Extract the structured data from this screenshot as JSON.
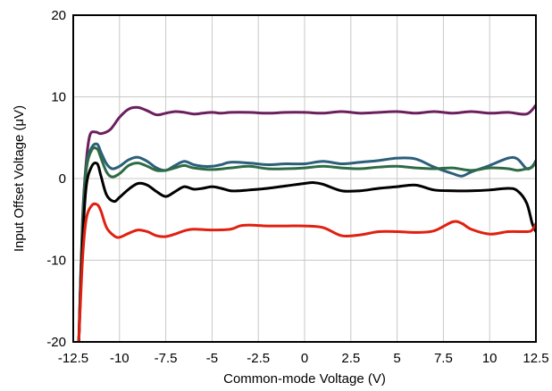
{
  "chart_data": {
    "type": "line",
    "title": "",
    "xlabel": "Common-mode Voltage (V)",
    "ylabel": "Input Offset Voltage (μV)",
    "xlim": [
      -12.5,
      12.5
    ],
    "ylim": [
      -20,
      20
    ],
    "x_ticks": [
      -12.5,
      -10,
      -7.5,
      -5,
      -2.5,
      0,
      2.5,
      5,
      7.5,
      10,
      12.5
    ],
    "x_tick_labels": [
      "-12.5",
      "-10",
      "-7.5",
      "-5",
      "-2.5",
      "0",
      "2.5",
      "5",
      "7.5",
      "10",
      "12.5"
    ],
    "y_ticks": [
      -20,
      -10,
      0,
      10,
      20
    ],
    "y_tick_labels": [
      "-20",
      "-10",
      "0",
      "10",
      "20"
    ],
    "x_grid": true,
    "y_grid": true,
    "legend": "none",
    "series": [
      {
        "color": "#6b1f5e",
        "points": [
          [
            -12.2,
            -20
          ],
          [
            -12.0,
            -5
          ],
          [
            -11.8,
            2
          ],
          [
            -11.6,
            5.3
          ],
          [
            -11.3,
            5.7
          ],
          [
            -11.0,
            5.5
          ],
          [
            -10.5,
            6
          ],
          [
            -10.0,
            7.5
          ],
          [
            -9.5,
            8.5
          ],
          [
            -9.0,
            8.7
          ],
          [
            -8.5,
            8.3
          ],
          [
            -8.0,
            7.8
          ],
          [
            -7.5,
            8.0
          ],
          [
            -7.0,
            8.2
          ],
          [
            -6.5,
            8.1
          ],
          [
            -6.0,
            7.9
          ],
          [
            -5.5,
            8.0
          ],
          [
            -5.0,
            8.1
          ],
          [
            -4.5,
            8.0
          ],
          [
            -4.0,
            8.1
          ],
          [
            -3.0,
            8.1
          ],
          [
            -2.0,
            8.0
          ],
          [
            -1.0,
            8.1
          ],
          [
            0.0,
            8.1
          ],
          [
            1.0,
            8.0
          ],
          [
            2.0,
            8.2
          ],
          [
            3.0,
            8.0
          ],
          [
            4.0,
            8.1
          ],
          [
            5.0,
            8.2
          ],
          [
            6.0,
            8.0
          ],
          [
            7.0,
            8.2
          ],
          [
            8.0,
            8.0
          ],
          [
            9.0,
            8.2
          ],
          [
            10.0,
            8.0
          ],
          [
            11.0,
            8.1
          ],
          [
            12.0,
            7.9
          ],
          [
            12.5,
            9.0
          ]
        ]
      },
      {
        "color": "#2b5f7a",
        "points": [
          [
            -12.2,
            -20
          ],
          [
            -12.0,
            -6
          ],
          [
            -11.8,
            1.5
          ],
          [
            -11.5,
            3.8
          ],
          [
            -11.2,
            4.2
          ],
          [
            -11.0,
            3.2
          ],
          [
            -10.7,
            1.8
          ],
          [
            -10.4,
            1.2
          ],
          [
            -10.0,
            1.5
          ],
          [
            -9.5,
            2.3
          ],
          [
            -9.0,
            2.6
          ],
          [
            -8.5,
            2.1
          ],
          [
            -8.0,
            1.3
          ],
          [
            -7.5,
            1.0
          ],
          [
            -7.0,
            1.6
          ],
          [
            -6.5,
            2.1
          ],
          [
            -6.0,
            1.7
          ],
          [
            -5.5,
            1.5
          ],
          [
            -5.0,
            1.5
          ],
          [
            -4.5,
            1.7
          ],
          [
            -4.0,
            2.0
          ],
          [
            -3.0,
            1.9
          ],
          [
            -2.0,
            1.7
          ],
          [
            -1.0,
            1.8
          ],
          [
            0.0,
            1.8
          ],
          [
            1.0,
            2.1
          ],
          [
            2.0,
            1.8
          ],
          [
            3.0,
            2.0
          ],
          [
            4.0,
            2.2
          ],
          [
            5.0,
            2.5
          ],
          [
            6.0,
            2.4
          ],
          [
            7.0,
            1.4
          ],
          [
            8.0,
            0.6
          ],
          [
            8.5,
            0.3
          ],
          [
            9.0,
            0.8
          ],
          [
            10.0,
            1.6
          ],
          [
            11.0,
            2.5
          ],
          [
            11.5,
            2.4
          ],
          [
            12.0,
            1.2
          ],
          [
            12.3,
            1.5
          ],
          [
            12.5,
            2.2
          ]
        ]
      },
      {
        "color": "#2e6b45",
        "points": [
          [
            -12.2,
            -20
          ],
          [
            -12.0,
            -6
          ],
          [
            -11.8,
            1.0
          ],
          [
            -11.5,
            3.5
          ],
          [
            -11.2,
            3.6
          ],
          [
            -11.0,
            2.5
          ],
          [
            -10.7,
            0.8
          ],
          [
            -10.4,
            0.2
          ],
          [
            -10.0,
            0.6
          ],
          [
            -9.5,
            1.6
          ],
          [
            -9.0,
            1.9
          ],
          [
            -8.5,
            1.5
          ],
          [
            -8.0,
            1.0
          ],
          [
            -7.5,
            1.0
          ],
          [
            -7.0,
            1.3
          ],
          [
            -6.5,
            1.6
          ],
          [
            -6.0,
            1.3
          ],
          [
            -5.0,
            1.1
          ],
          [
            -4.0,
            1.3
          ],
          [
            -3.0,
            1.5
          ],
          [
            -2.0,
            1.2
          ],
          [
            -1.0,
            1.2
          ],
          [
            0.0,
            1.3
          ],
          [
            1.0,
            1.5
          ],
          [
            2.0,
            1.3
          ],
          [
            3.0,
            1.2
          ],
          [
            4.0,
            1.4
          ],
          [
            5.0,
            1.5
          ],
          [
            6.0,
            1.3
          ],
          [
            7.0,
            1.2
          ],
          [
            8.0,
            1.3
          ],
          [
            9.0,
            1.0
          ],
          [
            10.0,
            1.3
          ],
          [
            11.0,
            1.2
          ],
          [
            11.5,
            1.0
          ],
          [
            12.0,
            1.2
          ],
          [
            12.3,
            1.4
          ],
          [
            12.5,
            2.1
          ]
        ]
      },
      {
        "color": "#000000",
        "points": [
          [
            -12.2,
            -20
          ],
          [
            -12.0,
            -8
          ],
          [
            -11.8,
            -1.0
          ],
          [
            -11.5,
            1.5
          ],
          [
            -11.2,
            1.8
          ],
          [
            -11.0,
            0.3
          ],
          [
            -10.7,
            -2.0
          ],
          [
            -10.3,
            -2.8
          ],
          [
            -10.0,
            -2.3
          ],
          [
            -9.5,
            -1.3
          ],
          [
            -9.0,
            -0.6
          ],
          [
            -8.5,
            -0.8
          ],
          [
            -8.0,
            -1.6
          ],
          [
            -7.5,
            -2.2
          ],
          [
            -7.0,
            -1.6
          ],
          [
            -6.5,
            -1.0
          ],
          [
            -6.0,
            -1.3
          ],
          [
            -5.5,
            -1.2
          ],
          [
            -5.0,
            -1.0
          ],
          [
            -4.5,
            -1.2
          ],
          [
            -4.0,
            -1.5
          ],
          [
            -3.5,
            -1.5
          ],
          [
            -3.0,
            -1.4
          ],
          [
            -2.0,
            -1.2
          ],
          [
            -1.0,
            -0.9
          ],
          [
            0.0,
            -0.6
          ],
          [
            0.5,
            -0.5
          ],
          [
            1.0,
            -0.7
          ],
          [
            2.0,
            -1.5
          ],
          [
            3.0,
            -1.5
          ],
          [
            4.0,
            -1.2
          ],
          [
            5.0,
            -1.0
          ],
          [
            6.0,
            -0.8
          ],
          [
            7.0,
            -1.4
          ],
          [
            8.0,
            -1.5
          ],
          [
            9.0,
            -1.5
          ],
          [
            10.0,
            -1.4
          ],
          [
            11.0,
            -1.2
          ],
          [
            11.5,
            -1.5
          ],
          [
            12.0,
            -3.0
          ],
          [
            12.3,
            -5.5
          ],
          [
            12.5,
            -6.5
          ]
        ]
      },
      {
        "color": "#e02010",
        "points": [
          [
            -12.2,
            -20
          ],
          [
            -12.0,
            -10
          ],
          [
            -11.8,
            -5.0
          ],
          [
            -11.5,
            -3.3
          ],
          [
            -11.2,
            -3.2
          ],
          [
            -11.0,
            -4.0
          ],
          [
            -10.7,
            -6.0
          ],
          [
            -10.3,
            -7.0
          ],
          [
            -10.0,
            -7.2
          ],
          [
            -9.5,
            -6.7
          ],
          [
            -9.0,
            -6.3
          ],
          [
            -8.5,
            -6.5
          ],
          [
            -8.0,
            -7.0
          ],
          [
            -7.5,
            -7.1
          ],
          [
            -7.0,
            -6.8
          ],
          [
            -6.5,
            -6.4
          ],
          [
            -6.0,
            -6.2
          ],
          [
            -5.0,
            -6.3
          ],
          [
            -4.0,
            -6.2
          ],
          [
            -3.5,
            -5.8
          ],
          [
            -3.0,
            -5.7
          ],
          [
            -2.0,
            -5.8
          ],
          [
            -1.0,
            -5.8
          ],
          [
            0.0,
            -5.8
          ],
          [
            1.0,
            -6.0
          ],
          [
            2.0,
            -7.0
          ],
          [
            3.0,
            -6.9
          ],
          [
            4.0,
            -6.5
          ],
          [
            5.0,
            -6.5
          ],
          [
            6.0,
            -6.6
          ],
          [
            7.0,
            -6.4
          ],
          [
            8.0,
            -5.3
          ],
          [
            8.5,
            -5.5
          ],
          [
            9.0,
            -6.2
          ],
          [
            10.0,
            -6.8
          ],
          [
            11.0,
            -6.5
          ],
          [
            12.0,
            -6.5
          ],
          [
            12.3,
            -6.3
          ],
          [
            12.5,
            -5.5
          ]
        ]
      }
    ]
  }
}
